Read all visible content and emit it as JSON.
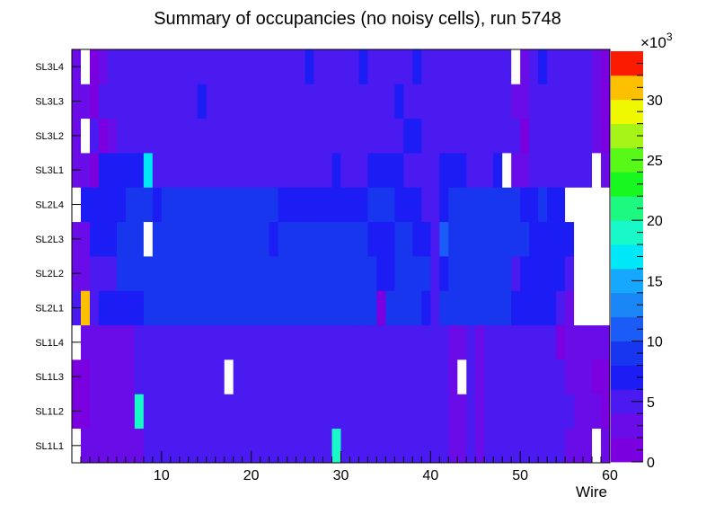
{
  "chart_data": {
    "type": "heatmap",
    "title": "Summary of occupancies (no noisy cells), run 5748",
    "xlabel": "Wire",
    "ylabel": "",
    "x_range": [
      0,
      60
    ],
    "x_ticks": [
      10,
      20,
      30,
      40,
      50,
      60
    ],
    "x_tick_labels": [
      "10",
      "20",
      "30",
      "40",
      "50",
      "60"
    ],
    "y_categories": [
      "SL1L1",
      "SL1L2",
      "SL1L3",
      "SL1L4",
      "SL2L1",
      "SL2L2",
      "SL2L3",
      "SL2L4",
      "SL3L1",
      "SL3L2",
      "SL3L3",
      "SL3L4"
    ],
    "z_range": [
      0,
      34000
    ],
    "z_ticks": [
      0,
      5,
      10,
      15,
      20,
      25,
      30
    ],
    "z_tick_labels": [
      "0",
      "5",
      "10",
      "15",
      "20",
      "25",
      "30"
    ],
    "z_multiplier_base": "×10",
    "z_multiplier_exp": "3",
    "default_value": 4500,
    "cell_note": "Cells are wire ranges [from, to] (1-based, inclusive) with an estimated occupancy; 0 = empty cell.",
    "layers": [
      {
        "name": "SL1L1",
        "base": 4500,
        "segments": [
          [
            1,
            1,
            0
          ],
          [
            2,
            8,
            3500
          ],
          [
            30,
            30,
            20000
          ],
          [
            43,
            44,
            4000
          ],
          [
            46,
            46,
            4000
          ],
          [
            56,
            58,
            3000
          ],
          [
            59,
            59,
            0
          ],
          [
            60,
            60,
            3000
          ]
        ]
      },
      {
        "name": "SL1L2",
        "base": 4500,
        "segments": [
          [
            1,
            2,
            2000
          ],
          [
            3,
            7,
            4000
          ],
          [
            8,
            8,
            20500
          ],
          [
            43,
            44,
            4000
          ],
          [
            46,
            46,
            4000
          ],
          [
            57,
            59,
            3000
          ],
          [
            60,
            60,
            2000
          ]
        ]
      },
      {
        "name": "SL1L3",
        "base": 4500,
        "segments": [
          [
            1,
            2,
            2000
          ],
          [
            3,
            7,
            3500
          ],
          [
            18,
            18,
            0
          ],
          [
            43,
            43,
            4000
          ],
          [
            44,
            44,
            0
          ],
          [
            46,
            46,
            4000
          ],
          [
            56,
            58,
            3000
          ],
          [
            59,
            60,
            2000
          ]
        ]
      },
      {
        "name": "SL1L4",
        "base": 4500,
        "segments": [
          [
            1,
            1,
            0
          ],
          [
            2,
            7,
            3500
          ],
          [
            43,
            44,
            4000
          ],
          [
            46,
            46,
            4000
          ],
          [
            55,
            55,
            2000
          ],
          [
            56,
            56,
            3500
          ],
          [
            57,
            60,
            3000
          ]
        ]
      },
      {
        "name": "SL2L1",
        "base": 9000,
        "segments": [
          [
            1,
            1,
            4500
          ],
          [
            2,
            2,
            33000
          ],
          [
            3,
            3,
            4500
          ],
          [
            4,
            8,
            6500
          ],
          [
            35,
            35,
            2000
          ],
          [
            40,
            40,
            6500
          ],
          [
            41,
            41,
            4500
          ],
          [
            49,
            49,
            9500
          ],
          [
            50,
            51,
            8000
          ],
          [
            52,
            54,
            6500
          ],
          [
            55,
            55,
            4500
          ],
          [
            56,
            56,
            4000
          ],
          [
            57,
            60,
            0
          ]
        ]
      },
      {
        "name": "SL2L2",
        "base": 9000,
        "segments": [
          [
            1,
            2,
            4000
          ],
          [
            3,
            5,
            6000
          ],
          [
            35,
            36,
            6500
          ],
          [
            41,
            41,
            4500
          ],
          [
            42,
            42,
            6500
          ],
          [
            50,
            50,
            4500
          ],
          [
            51,
            54,
            6500
          ],
          [
            55,
            55,
            7000
          ],
          [
            56,
            56,
            4500
          ],
          [
            57,
            60,
            0
          ]
        ]
      },
      {
        "name": "SL2L3",
        "base": 9000,
        "segments": [
          [
            1,
            2,
            4000
          ],
          [
            3,
            5,
            6500
          ],
          [
            9,
            9,
            0
          ],
          [
            23,
            23,
            6500
          ],
          [
            34,
            36,
            6500
          ],
          [
            39,
            40,
            6500
          ],
          [
            41,
            41,
            4500
          ],
          [
            42,
            42,
            11000
          ],
          [
            52,
            56,
            6500
          ],
          [
            57,
            60,
            0
          ]
        ]
      },
      {
        "name": "SL2L4",
        "base": 9000,
        "segments": [
          [
            1,
            1,
            0
          ],
          [
            2,
            6,
            6500
          ],
          [
            10,
            10,
            6500
          ],
          [
            24,
            33,
            6500
          ],
          [
            34,
            36,
            9000
          ],
          [
            37,
            39,
            6500
          ],
          [
            40,
            41,
            4500
          ],
          [
            42,
            42,
            6500
          ],
          [
            51,
            52,
            6500
          ],
          [
            53,
            53,
            9000
          ],
          [
            54,
            55,
            6500
          ],
          [
            56,
            60,
            0
          ]
        ]
      },
      {
        "name": "SL3L1",
        "base": 4500,
        "segments": [
          [
            1,
            2,
            4000
          ],
          [
            3,
            3,
            2000
          ],
          [
            4,
            8,
            6500
          ],
          [
            9,
            9,
            17500
          ],
          [
            30,
            30,
            6500
          ],
          [
            34,
            37,
            6500
          ],
          [
            42,
            44,
            6500
          ],
          [
            48,
            48,
            6500
          ],
          [
            49,
            49,
            0
          ],
          [
            50,
            51,
            3500
          ],
          [
            52,
            58,
            4500
          ],
          [
            59,
            59,
            0
          ],
          [
            60,
            60,
            3000
          ]
        ]
      },
      {
        "name": "SL3L2",
        "base": 4500,
        "segments": [
          [
            1,
            1,
            3000
          ],
          [
            2,
            2,
            0
          ],
          [
            3,
            3,
            4500
          ],
          [
            4,
            4,
            2000
          ],
          [
            5,
            5,
            3500
          ],
          [
            38,
            39,
            6500
          ],
          [
            51,
            51,
            2000
          ],
          [
            59,
            59,
            3500
          ],
          [
            60,
            60,
            2000
          ]
        ]
      },
      {
        "name": "SL3L3",
        "base": 4500,
        "segments": [
          [
            1,
            1,
            3000
          ],
          [
            2,
            2,
            2500
          ],
          [
            3,
            3,
            2000
          ],
          [
            15,
            15,
            6500
          ],
          [
            37,
            37,
            6500
          ],
          [
            50,
            51,
            2500
          ],
          [
            59,
            59,
            3500
          ],
          [
            60,
            60,
            2000
          ]
        ]
      },
      {
        "name": "SL3L4",
        "base": 4500,
        "segments": [
          [
            1,
            1,
            3000
          ],
          [
            2,
            2,
            0
          ],
          [
            3,
            3,
            2000
          ],
          [
            4,
            4,
            3000
          ],
          [
            27,
            27,
            6500
          ],
          [
            33,
            33,
            6500
          ],
          [
            39,
            39,
            6500
          ],
          [
            50,
            50,
            0
          ],
          [
            51,
            51,
            2500
          ],
          [
            53,
            53,
            6500
          ],
          [
            59,
            59,
            3500
          ],
          [
            60,
            60,
            2000
          ]
        ]
      }
    ]
  }
}
